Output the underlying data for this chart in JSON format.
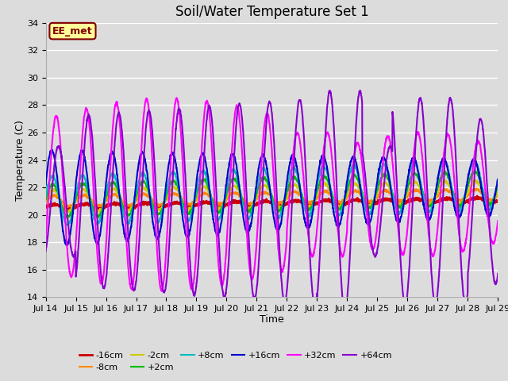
{
  "title": "Soil/Water Temperature Set 1",
  "xlabel": "Time",
  "ylabel": "Temperature (C)",
  "ylim": [
    14,
    34
  ],
  "yticks": [
    14,
    16,
    18,
    20,
    22,
    24,
    26,
    28,
    30,
    32,
    34
  ],
  "xtick_labels": [
    "Jul 14",
    "Jul 15",
    "Jul 16",
    "Jul 17",
    "Jul 18",
    "Jul 19",
    "Jul 20",
    "Jul 21",
    "Jul 22",
    "Jul 23",
    "Jul 24",
    "Jul 25",
    "Jul 26",
    "Jul 27",
    "Jul 28",
    "Jul 29"
  ],
  "annotation_text": "EE_met",
  "annotation_bg": "#ffff99",
  "annotation_border": "#800000",
  "series_order": [
    "-16cm",
    "-8cm",
    "-2cm",
    "+2cm",
    "+8cm",
    "+16cm",
    "+32cm",
    "+64cm"
  ],
  "series": {
    "-16cm": {
      "color": "#cc0000",
      "lw": 2.0
    },
    "-8cm": {
      "color": "#ff8800",
      "lw": 1.5
    },
    "-2cm": {
      "color": "#cccc00",
      "lw": 1.5
    },
    "+2cm": {
      "color": "#00bb00",
      "lw": 1.5
    },
    "+8cm": {
      "color": "#00bbbb",
      "lw": 1.5
    },
    "+16cm": {
      "color": "#0000cc",
      "lw": 1.5
    },
    "+32cm": {
      "color": "#ff00ff",
      "lw": 1.5
    },
    "+64cm": {
      "color": "#8800cc",
      "lw": 1.5
    }
  },
  "bg_color": "#dcdcdc",
  "plot_bg": "#dcdcdc",
  "grid_color": "#ffffff",
  "title_fontsize": 12,
  "tick_fontsize": 8,
  "label_fontsize": 9,
  "legend_fontsize": 8
}
